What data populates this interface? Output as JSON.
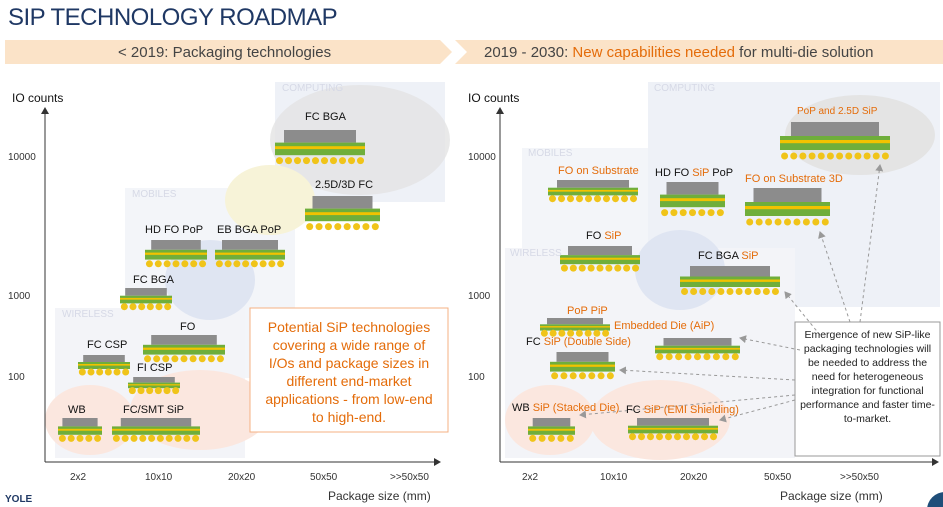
{
  "title": "SIP TECHNOLOGY ROADMAP",
  "left": {
    "banner": "< 2019: Packaging technologies",
    "y_label": "IO counts",
    "y_ticks": [
      10000,
      1000,
      100
    ],
    "x_ticks": [
      "2x2",
      "10x10",
      "20x20",
      "50x50",
      ">>50x50"
    ],
    "x_label": "Package size (mm)",
    "regions": [
      "COMPUTING",
      "MOBILES",
      "WIRELESS"
    ],
    "packages": [
      "FC BGA",
      "2.5D/3D FC",
      "HD FO PoP",
      "EB BGA PoP",
      "FC BGA",
      "FO",
      "FC CSP",
      "FI CSP",
      "WB",
      "FC/SMT SiP"
    ],
    "callout": "Potential SiP technologies covering a wide range of I/Os and package sizes in different end-market applications - from low-end to high-end."
  },
  "right": {
    "banner": [
      "2019 - 2030: ",
      "New capabilities needed",
      " for multi-die solution"
    ],
    "y_label": "IO counts",
    "y_ticks": [
      10000,
      1000,
      100
    ],
    "x_ticks": [
      "2x2",
      "10x10",
      "20x20",
      "50x50",
      ">>50x50"
    ],
    "x_label": "Package size (mm)",
    "regions": [
      "COMPUTING",
      "MOBILES",
      "WIRELESS"
    ],
    "packages": [
      [
        {
          "text": "PoP and 2.5D SiP",
          "color": "#e46c0a"
        }
      ],
      [
        {
          "text": "FO on Substrate",
          "color": "#e46c0a"
        }
      ],
      [
        {
          "text": "HD FO ",
          "color": "#111111"
        },
        {
          "text": "SiP",
          "color": "#e46c0a"
        },
        {
          "text": " PoP",
          "color": "#111111"
        }
      ],
      [
        {
          "text": "FO on Substrate 3D",
          "color": "#e46c0a"
        }
      ],
      [
        {
          "text": "FO ",
          "color": "#111111"
        },
        {
          "text": "SiP",
          "color": "#e46c0a"
        }
      ],
      [
        {
          "text": "FC BGA ",
          "color": "#111111"
        },
        {
          "text": "SiP",
          "color": "#e46c0a"
        }
      ],
      [
        {
          "text": "PoP PiP",
          "color": "#e46c0a"
        }
      ],
      [
        {
          "text": "Embedded Die (AiP)",
          "color": "#e46c0a"
        }
      ],
      [
        {
          "text": "FC ",
          "color": "#111111"
        },
        {
          "text": "SiP (Double Side)",
          "color": "#e46c0a"
        }
      ],
      [
        {
          "text": "WB ",
          "color": "#111111"
        },
        {
          "text": "SiP (Stacked Die)",
          "color": "#e46c0a"
        }
      ],
      [
        {
          "text": "FC ",
          "color": "#111111"
        },
        {
          "text": "SiP (EMI Shielding)",
          "color": "#e46c0a"
        }
      ]
    ],
    "callout": "Emergence of new SiP-like packaging technologies will be needed to address the need for heterogeneous integration for functional performance and faster time-to-market."
  },
  "footer": "YOLE"
}
